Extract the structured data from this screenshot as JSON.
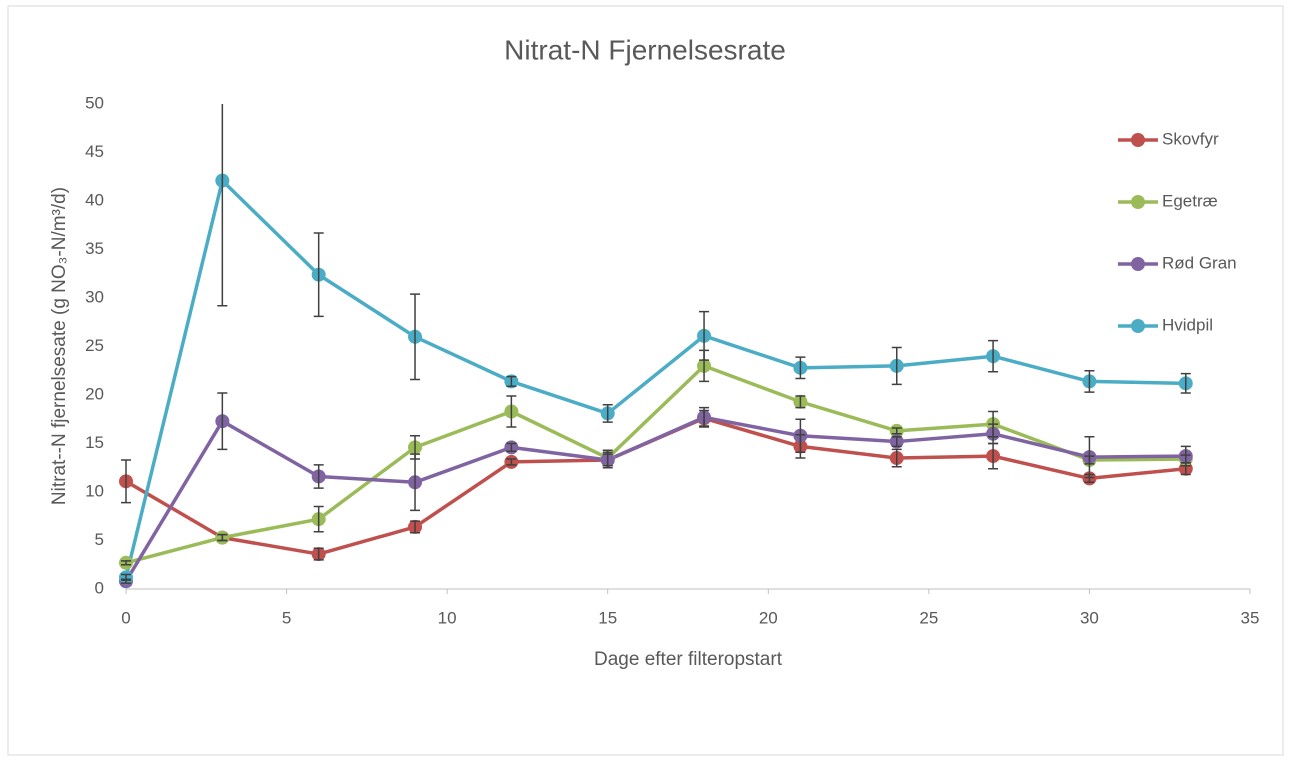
{
  "chart_data": {
    "type": "line",
    "title": "Nitrat-N Fjernelsesrate",
    "x_label": "Dage efter filteropstart",
    "y_label": "Nitrat--N fjernelsesate (g NO₃-N/m³/d)",
    "x": [
      0,
      3,
      6,
      9,
      12,
      15,
      18,
      21,
      24,
      27,
      30,
      33
    ],
    "series": [
      {
        "name": "Skovfyr",
        "color": "#c0504d",
        "values": [
          11.1,
          5.3,
          3.6,
          6.4,
          13.1,
          13.3,
          17.6,
          14.7,
          13.5,
          13.7,
          11.4,
          12.4
        ],
        "errors": [
          2.2,
          0.3,
          0.6,
          0.6,
          0.3,
          0.8,
          0.8,
          1.2,
          0.9,
          1.3,
          0.4,
          0.6
        ]
      },
      {
        "name": "Egetræ",
        "color": "#9bbb59",
        "values": [
          2.7,
          5.3,
          7.2,
          14.6,
          18.3,
          13.5,
          23.0,
          19.3,
          16.3,
          17.0,
          13.3,
          13.4
        ],
        "errors": [
          0.2,
          0.3,
          1.3,
          1.2,
          1.6,
          0.8,
          1.6,
          0.6,
          0.3,
          1.3,
          0.4,
          0.4
        ]
      },
      {
        "name": "Rød Gran",
        "color": "#8064a2",
        "values": [
          0.8,
          17.3,
          11.6,
          11.0,
          14.6,
          13.3,
          17.7,
          15.8,
          15.2,
          16.0,
          13.6,
          13.7
        ],
        "errors": [
          0.2,
          2.9,
          1.2,
          2.9,
          0.4,
          0.6,
          1.0,
          1.7,
          0.5,
          1.0,
          2.1,
          1.0
        ]
      },
      {
        "name": "Hvidpil",
        "color": "#4bacc6",
        "values": [
          1.2,
          42.1,
          32.4,
          26.0,
          21.4,
          18.1,
          26.1,
          22.8,
          23.0,
          24.0,
          21.4,
          21.2
        ],
        "errors": [
          0.3,
          12.9,
          4.3,
          4.4,
          0.5,
          0.9,
          2.5,
          1.1,
          1.9,
          1.6,
          1.1,
          1.0
        ]
      }
    ],
    "xlim": [
      0,
      35
    ],
    "xticks": [
      0,
      5,
      10,
      15,
      20,
      25,
      30,
      35
    ],
    "ylim": [
      0,
      50
    ],
    "yticks": [
      0,
      5,
      10,
      15,
      20,
      25,
      30,
      35,
      40,
      45,
      50
    ],
    "grid": false,
    "legend": "right"
  }
}
